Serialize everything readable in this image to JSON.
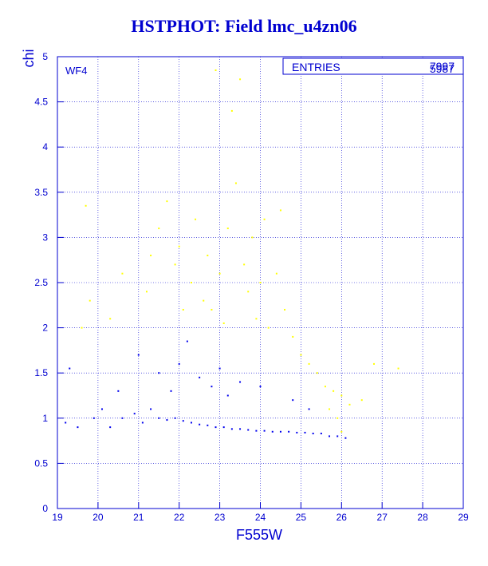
{
  "title": "HSTPHOT: Field lmc_u4zn06",
  "chip_label": "WF4",
  "stats": {
    "label": "ENTRIES",
    "value_back": "7997",
    "value_front": "5987"
  },
  "colors": {
    "axis": "#0000d0",
    "primary": "#0000ee",
    "secondary": "#ffff00",
    "background": "#ffffff"
  },
  "chart_data": {
    "type": "scatter",
    "title": "HSTPHOT: Field lmc_u4zn06",
    "xlabel": "F555W",
    "ylabel": "chi",
    "xlim": [
      19,
      29
    ],
    "ylim": [
      0,
      5
    ],
    "x_ticks": [
      "19",
      "20",
      "21",
      "22",
      "23",
      "24",
      "25",
      "26",
      "27",
      "28",
      "29"
    ],
    "y_ticks": [
      "0",
      "0.5",
      "1",
      "1.5",
      "2",
      "2.5",
      "3",
      "3.5",
      "4",
      "4.5",
      "5"
    ],
    "grid": true,
    "series": [
      {
        "color": "#ffff00",
        "points": [
          [
            19.7,
            3.35
          ],
          [
            19.8,
            2.3
          ],
          [
            19.6,
            2.0
          ],
          [
            20.3,
            2.1
          ],
          [
            20.6,
            2.6
          ],
          [
            21.2,
            2.4
          ],
          [
            21.3,
            2.8
          ],
          [
            21.5,
            3.1
          ],
          [
            21.7,
            3.4
          ],
          [
            21.9,
            2.7
          ],
          [
            22.0,
            2.9
          ],
          [
            22.1,
            2.2
          ],
          [
            22.3,
            2.5
          ],
          [
            22.4,
            3.2
          ],
          [
            22.6,
            2.3
          ],
          [
            22.7,
            2.8
          ],
          [
            22.8,
            2.2
          ],
          [
            22.9,
            4.85
          ],
          [
            23.0,
            2.6
          ],
          [
            23.1,
            2.05
          ],
          [
            23.2,
            3.1
          ],
          [
            23.3,
            4.4
          ],
          [
            23.4,
            3.6
          ],
          [
            23.5,
            4.75
          ],
          [
            23.6,
            2.7
          ],
          [
            23.7,
            2.4
          ],
          [
            23.8,
            3.0
          ],
          [
            23.9,
            2.1
          ],
          [
            24.0,
            2.5
          ],
          [
            24.1,
            3.2
          ],
          [
            24.2,
            2.0
          ],
          [
            24.4,
            2.6
          ],
          [
            24.5,
            3.3
          ],
          [
            24.6,
            2.2
          ],
          [
            24.8,
            1.9
          ],
          [
            25.0,
            1.7
          ],
          [
            25.2,
            1.6
          ],
          [
            25.4,
            1.5
          ],
          [
            25.6,
            1.35
          ],
          [
            25.8,
            1.3
          ],
          [
            26.0,
            1.25
          ],
          [
            26.2,
            1.15
          ],
          [
            26.5,
            1.2
          ],
          [
            26.8,
            1.6
          ],
          [
            27.4,
            1.55
          ],
          [
            26.0,
            0.85
          ],
          [
            25.9,
            1.0
          ],
          [
            25.7,
            1.1
          ]
        ]
      },
      {
        "color": "#0000ee",
        "points": [
          [
            19.2,
            0.95
          ],
          [
            19.5,
            0.9
          ],
          [
            19.9,
            1.0
          ],
          [
            20.1,
            1.1
          ],
          [
            20.3,
            0.9
          ],
          [
            20.6,
            1.0
          ],
          [
            20.9,
            1.05
          ],
          [
            21.1,
            0.95
          ],
          [
            21.3,
            1.1
          ],
          [
            21.5,
            1.0
          ],
          [
            21.7,
            0.98
          ],
          [
            21.9,
            1.0
          ],
          [
            22.1,
            0.97
          ],
          [
            22.3,
            0.95
          ],
          [
            22.5,
            0.93
          ],
          [
            22.7,
            0.92
          ],
          [
            22.9,
            0.9
          ],
          [
            23.1,
            0.9
          ],
          [
            23.3,
            0.88
          ],
          [
            23.5,
            0.88
          ],
          [
            23.7,
            0.87
          ],
          [
            23.9,
            0.86
          ],
          [
            24.1,
            0.86
          ],
          [
            24.3,
            0.85
          ],
          [
            24.5,
            0.85
          ],
          [
            24.7,
            0.85
          ],
          [
            24.9,
            0.84
          ],
          [
            25.1,
            0.84
          ],
          [
            25.3,
            0.83
          ],
          [
            25.5,
            0.83
          ],
          [
            25.7,
            0.8
          ],
          [
            25.9,
            0.8
          ],
          [
            26.1,
            0.78
          ],
          [
            21.5,
            1.5
          ],
          [
            22.0,
            1.6
          ],
          [
            22.5,
            1.45
          ],
          [
            23.0,
            1.55
          ],
          [
            23.5,
            1.4
          ],
          [
            24.0,
            1.35
          ],
          [
            21.0,
            1.7
          ],
          [
            22.2,
            1.85
          ],
          [
            19.3,
            1.55
          ],
          [
            20.5,
            1.3
          ],
          [
            24.8,
            1.2
          ],
          [
            25.2,
            1.1
          ],
          [
            23.2,
            1.25
          ],
          [
            22.8,
            1.35
          ],
          [
            21.8,
            1.3
          ]
        ]
      }
    ]
  }
}
